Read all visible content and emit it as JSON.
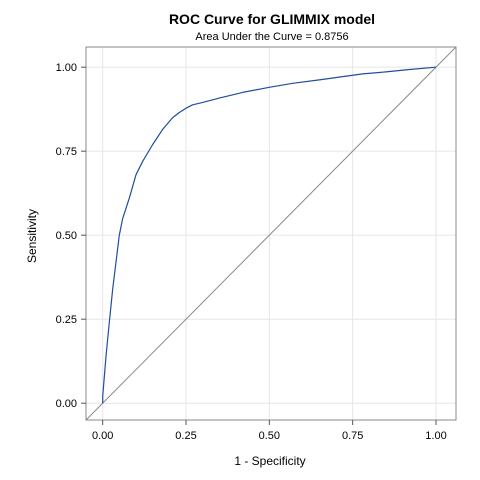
{
  "chart_data": {
    "type": "line",
    "title": "ROC Curve for GLIMMIX model",
    "subtitle": "Area Under the Curve = 0.8756",
    "xlabel": "1 - Specificity",
    "ylabel": "Sensitivity",
    "xlim": [
      -0.05,
      1.06
    ],
    "ylim": [
      -0.05,
      1.06
    ],
    "xticks": [
      0.0,
      0.25,
      0.5,
      0.75,
      1.0
    ],
    "yticks": [
      0.0,
      0.25,
      0.5,
      0.75,
      1.0
    ],
    "xtick_labels": [
      "0.00",
      "0.25",
      "0.50",
      "0.75",
      "1.00"
    ],
    "ytick_labels": [
      "0.00",
      "0.25",
      "0.50",
      "0.75",
      "1.00"
    ],
    "grid": true,
    "colors": {
      "roc": "#1F4E9C",
      "reference": "#8A8A8A",
      "grid": "#E6E6E6",
      "frame": "#888888"
    },
    "series": [
      {
        "x": [
          0.0,
          0.0,
          0.01,
          0.02,
          0.03,
          0.04,
          0.05,
          0.06,
          0.07,
          0.08,
          0.1,
          0.12,
          0.15,
          0.18,
          0.21,
          0.23,
          0.25,
          0.27,
          0.3,
          0.35,
          0.42,
          0.5,
          0.57,
          0.65,
          0.72,
          0.78,
          0.85,
          0.92,
          1.0
        ],
        "y": [
          0.0,
          0.02,
          0.14,
          0.24,
          0.34,
          0.42,
          0.5,
          0.55,
          0.58,
          0.61,
          0.68,
          0.72,
          0.77,
          0.815,
          0.85,
          0.865,
          0.878,
          0.888,
          0.895,
          0.908,
          0.925,
          0.94,
          0.952,
          0.962,
          0.972,
          0.98,
          0.986,
          0.993,
          1.0
        ]
      },
      {
        "x": [
          -0.05,
          1.06
        ],
        "y": [
          -0.05,
          1.06
        ]
      }
    ]
  }
}
